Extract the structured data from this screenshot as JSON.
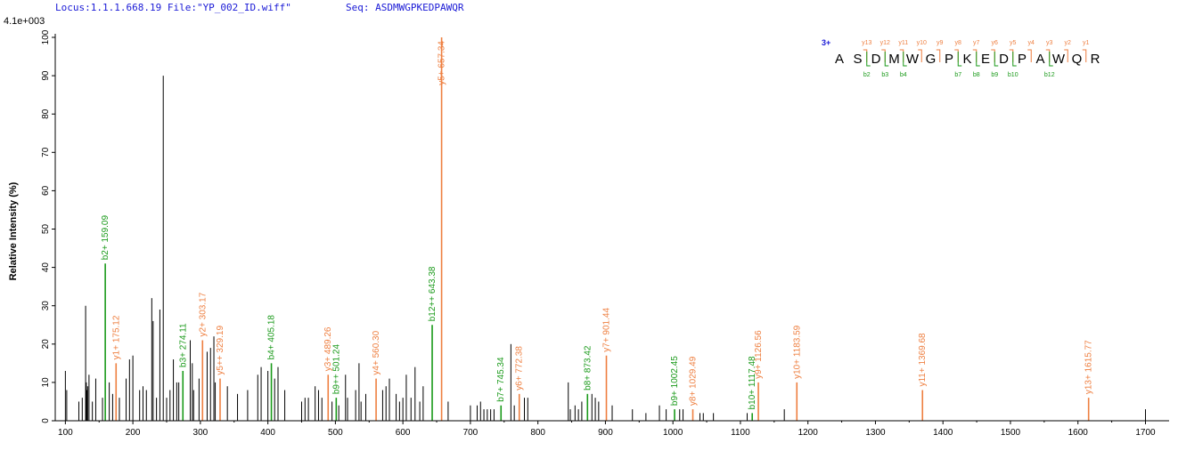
{
  "header": {
    "locus": "Locus:1.1.1.668.19 File:\"YP_002_ID.wiff\"",
    "seq": "Seq: ASDMWGPKEDPAWQR",
    "scale": "4.1e+003"
  },
  "chart_data": {
    "type": "bar",
    "xlabel": "",
    "ylabel": "Relative Intensity (%)",
    "xlim": [
      85,
      1735
    ],
    "ylim": [
      0,
      100
    ],
    "xticks": [
      100,
      200,
      300,
      400,
      500,
      600,
      700,
      800,
      900,
      1000,
      1100,
      1200,
      1300,
      1400,
      1500,
      1600,
      1700
    ],
    "yticks": [
      0,
      10,
      20,
      30,
      40,
      50,
      60,
      70,
      80,
      90,
      100
    ],
    "colors": {
      "unassigned": "#000000",
      "b_ion": "#1a9a1a",
      "y_ion": "#ee7f40",
      "axis": "#000000"
    },
    "annotated_peaks": [
      {
        "mz": 159.09,
        "intensity": 41,
        "ion": "b",
        "label": "b2+ 159.09"
      },
      {
        "mz": 175.12,
        "intensity": 15,
        "ion": "y",
        "label": "y1+ 175.12"
      },
      {
        "mz": 274.11,
        "intensity": 13,
        "ion": "b",
        "label": "b3+ 274.11"
      },
      {
        "mz": 303.17,
        "intensity": 21,
        "ion": "y",
        "label": "y2+ 303.17"
      },
      {
        "mz": 329.19,
        "intensity": 11,
        "ion": "y",
        "label": "y5++ 329.19"
      },
      {
        "mz": 405.18,
        "intensity": 15,
        "ion": "b",
        "label": "b4+ 405.18"
      },
      {
        "mz": 489.26,
        "intensity": 12,
        "ion": "y",
        "label": "y3+ 489.26"
      },
      {
        "mz": 501.24,
        "intensity": 6,
        "ion": "b",
        "label": "b9++ 501.24"
      },
      {
        "mz": 560.3,
        "intensity": 11,
        "ion": "y",
        "label": "y4+ 560.30"
      },
      {
        "mz": 643.38,
        "intensity": 25,
        "ion": "b",
        "label": "b12++ 643.38"
      },
      {
        "mz": 657.34,
        "intensity": 100,
        "ion": "y",
        "label": "y5+ 657.34"
      },
      {
        "mz": 745.34,
        "intensity": 4,
        "ion": "b",
        "label": "b7+ 745.34"
      },
      {
        "mz": 772.38,
        "intensity": 7,
        "ion": "y",
        "label": "y6+ 772.38"
      },
      {
        "mz": 873.42,
        "intensity": 7,
        "ion": "b",
        "label": "b8+ 873.42"
      },
      {
        "mz": 901.44,
        "intensity": 17,
        "ion": "y",
        "label": "y7+ 901.44"
      },
      {
        "mz": 1002.45,
        "intensity": 3,
        "ion": "b",
        "label": "b9+ 1002.45"
      },
      {
        "mz": 1029.49,
        "intensity": 3,
        "ion": "y",
        "label": "y8+ 1029.49"
      },
      {
        "mz": 1117.48,
        "intensity": 2,
        "ion": "b",
        "label": "b10+ 1117.48"
      },
      {
        "mz": 1126.56,
        "intensity": 10,
        "ion": "y",
        "label": "y9+ 1126.56"
      },
      {
        "mz": 1183.59,
        "intensity": 10,
        "ion": "y",
        "label": "y10+ 1183.59"
      },
      {
        "mz": 1369.68,
        "intensity": 8,
        "ion": "y",
        "label": "y11+ 1369.68"
      },
      {
        "mz": 1615.77,
        "intensity": 6,
        "ion": "y",
        "label": "y13+ 1615.77"
      }
    ],
    "unassigned_peaks": [
      [
        100,
        13
      ],
      [
        102,
        8
      ],
      [
        120,
        5
      ],
      [
        125,
        6
      ],
      [
        130,
        30
      ],
      [
        131,
        10
      ],
      [
        132,
        8
      ],
      [
        133,
        9
      ],
      [
        135,
        12
      ],
      [
        140,
        5
      ],
      [
        145,
        11
      ],
      [
        155,
        6
      ],
      [
        165,
        10
      ],
      [
        170,
        7
      ],
      [
        180,
        6
      ],
      [
        190,
        11
      ],
      [
        195,
        16
      ],
      [
        200,
        17
      ],
      [
        210,
        8
      ],
      [
        215,
        9
      ],
      [
        220,
        8
      ],
      [
        228,
        32
      ],
      [
        230,
        26
      ],
      [
        235,
        6
      ],
      [
        240,
        29
      ],
      [
        245,
        90
      ],
      [
        250,
        6
      ],
      [
        255,
        8
      ],
      [
        260,
        16
      ],
      [
        265,
        10
      ],
      [
        268,
        10
      ],
      [
        285,
        21
      ],
      [
        288,
        15
      ],
      [
        290,
        8
      ],
      [
        298,
        11
      ],
      [
        310,
        18
      ],
      [
        315,
        19
      ],
      [
        320,
        22
      ],
      [
        322,
        10
      ],
      [
        340,
        9
      ],
      [
        355,
        7
      ],
      [
        370,
        8
      ],
      [
        385,
        12
      ],
      [
        390,
        14
      ],
      [
        400,
        13
      ],
      [
        410,
        11
      ],
      [
        415,
        14
      ],
      [
        425,
        8
      ],
      [
        450,
        5
      ],
      [
        455,
        6
      ],
      [
        460,
        6
      ],
      [
        470,
        9
      ],
      [
        475,
        8
      ],
      [
        480,
        6
      ],
      [
        495,
        5
      ],
      [
        505,
        4
      ],
      [
        515,
        12
      ],
      [
        518,
        6
      ],
      [
        530,
        8
      ],
      [
        535,
        15
      ],
      [
        538,
        5
      ],
      [
        545,
        7
      ],
      [
        570,
        8
      ],
      [
        575,
        9
      ],
      [
        580,
        11
      ],
      [
        590,
        7
      ],
      [
        595,
        5
      ],
      [
        600,
        6
      ],
      [
        605,
        12
      ],
      [
        612,
        6
      ],
      [
        618,
        14
      ],
      [
        625,
        5
      ],
      [
        630,
        9
      ],
      [
        667,
        5
      ],
      [
        700,
        4
      ],
      [
        710,
        4
      ],
      [
        715,
        5
      ],
      [
        720,
        3
      ],
      [
        725,
        3
      ],
      [
        730,
        3
      ],
      [
        735,
        3
      ],
      [
        760,
        20
      ],
      [
        765,
        4
      ],
      [
        780,
        6
      ],
      [
        785,
        6
      ],
      [
        845,
        10
      ],
      [
        848,
        3
      ],
      [
        855,
        4
      ],
      [
        860,
        3
      ],
      [
        865,
        5
      ],
      [
        880,
        7
      ],
      [
        885,
        6
      ],
      [
        890,
        5
      ],
      [
        910,
        4
      ],
      [
        940,
        3
      ],
      [
        960,
        2
      ],
      [
        980,
        4
      ],
      [
        990,
        3
      ],
      [
        1010,
        3
      ],
      [
        1015,
        3
      ],
      [
        1040,
        2
      ],
      [
        1045,
        2
      ],
      [
        1060,
        2
      ],
      [
        1110,
        2
      ],
      [
        1165,
        3
      ],
      [
        1700,
        3
      ]
    ],
    "peptide": {
      "charge": "3+",
      "residues": [
        "A",
        "S",
        "D",
        "M",
        "W",
        "G",
        "P",
        "K",
        "E",
        "D",
        "P",
        "A",
        "W",
        "Q",
        "R"
      ],
      "y_labels": [
        "y13",
        "y12",
        "y11",
        "y10",
        "y9",
        "y8",
        "y7",
        "y6",
        "y5",
        "y4",
        "y3",
        "y2",
        "y1"
      ],
      "b_labels": [
        "b2",
        "b3",
        "b4",
        "b7",
        "b8",
        "b9",
        "b10",
        "b12"
      ]
    }
  }
}
